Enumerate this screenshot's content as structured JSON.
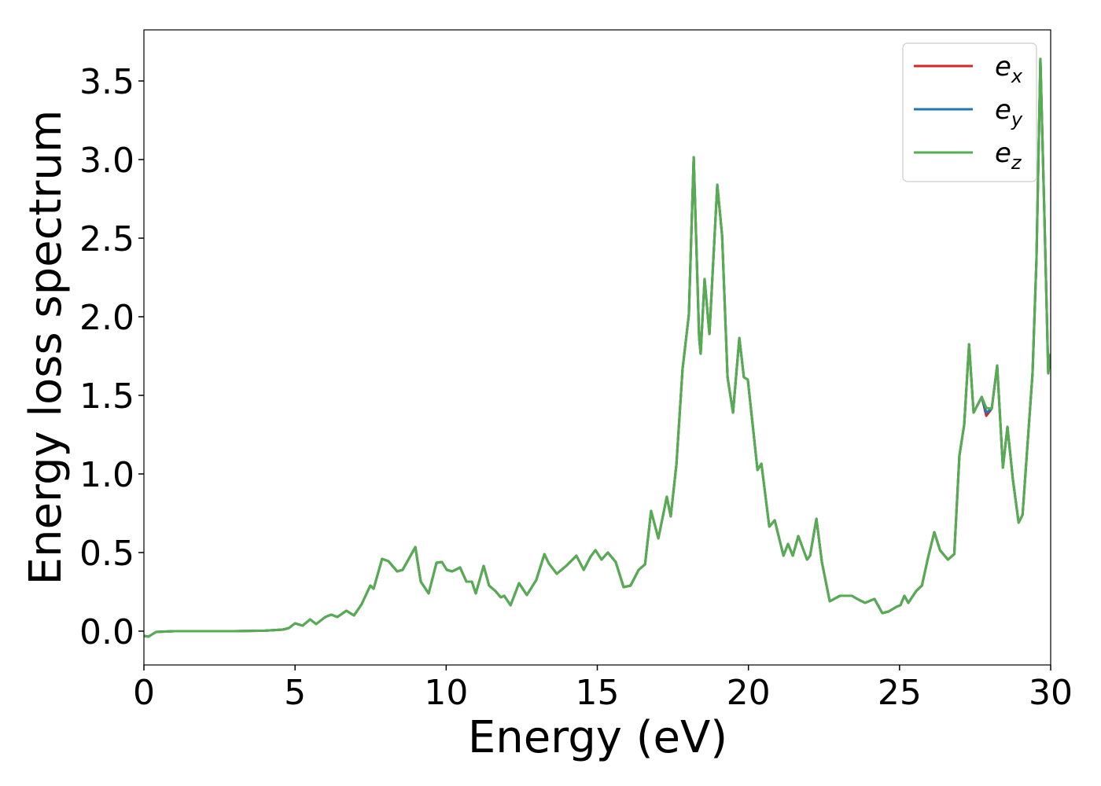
{
  "chart_data": {
    "type": "line",
    "xlabel": "Energy (eV)",
    "ylabel": "Energy loss spectrum",
    "xlim": [
      0,
      30
    ],
    "ylim": [
      -0.215,
      3.825
    ],
    "xticks": [
      0,
      5,
      10,
      15,
      20,
      25,
      30
    ],
    "yticks": [
      {
        "value": 0,
        "label": "0.0"
      },
      0.5,
      {
        "value": 1,
        "label": "1.0"
      },
      1.5,
      {
        "value": 2,
        "label": "2.0"
      },
      2.5,
      {
        "value": 3,
        "label": "3.0"
      },
      3.5
    ],
    "legend": "upper right",
    "x": [
      0,
      0.15,
      0.4,
      1,
      2,
      3,
      4,
      4.6,
      4.8,
      5.0,
      5.25,
      5.5,
      5.7,
      6.0,
      6.2,
      6.4,
      6.7,
      6.95,
      7.2,
      7.49,
      7.6,
      7.88,
      8.09,
      8.38,
      8.56,
      8.98,
      9.16,
      9.42,
      9.68,
      9.86,
      10.02,
      10.2,
      10.46,
      10.67,
      10.85,
      10.98,
      11.24,
      11.42,
      11.63,
      11.81,
      11.92,
      12.13,
      12.41,
      12.67,
      12.98,
      13.25,
      13.4,
      13.66,
      13.97,
      14.31,
      14.55,
      14.78,
      14.94,
      15.14,
      15.35,
      15.61,
      15.87,
      16.1,
      16.37,
      16.58,
      16.78,
      17.02,
      17.3,
      17.43,
      17.62,
      17.82,
      18.03,
      18.19,
      18.37,
      18.42,
      18.55,
      18.71,
      18.97,
      19.13,
      19.31,
      19.49,
      19.7,
      19.85,
      19.98,
      20.14,
      20.3,
      20.43,
      20.69,
      20.87,
      21.16,
      21.31,
      21.47,
      21.65,
      21.94,
      22.04,
      22.25,
      22.43,
      22.69,
      23.03,
      23.42,
      23.65,
      23.86,
      24.17,
      24.43,
      24.64,
      24.9,
      25.03,
      25.16,
      25.29,
      25.55,
      25.74,
      25.94,
      26.15,
      26.34,
      26.6,
      26.81,
      26.98,
      27.14,
      27.3,
      27.45,
      27.72,
      27.87,
      28.05,
      28.23,
      28.42,
      28.57,
      28.75,
      28.94,
      29.07,
      29.4,
      29.53,
      29.66,
      29.79,
      29.92,
      30.0
    ],
    "series": [
      {
        "name": "e",
        "subscript": "x",
        "color": "#d62728",
        "values": [
          -0.03,
          -0.035,
          -0.005,
          0,
          0,
          0,
          0.003,
          0.01,
          0.02,
          0.05,
          0.035,
          0.075,
          0.045,
          0.09,
          0.105,
          0.09,
          0.13,
          0.1,
          0.17,
          0.29,
          0.27,
          0.46,
          0.445,
          0.38,
          0.39,
          0.535,
          0.315,
          0.24,
          0.435,
          0.44,
          0.39,
          0.38,
          0.405,
          0.315,
          0.315,
          0.24,
          0.415,
          0.29,
          0.255,
          0.215,
          0.225,
          0.165,
          0.305,
          0.23,
          0.325,
          0.49,
          0.43,
          0.365,
          0.415,
          0.48,
          0.39,
          0.475,
          0.515,
          0.455,
          0.5,
          0.44,
          0.28,
          0.29,
          0.39,
          0.425,
          0.765,
          0.59,
          0.855,
          0.73,
          1.065,
          1.665,
          2.015,
          3.015,
          1.865,
          1.765,
          2.24,
          1.89,
          2.84,
          2.515,
          1.615,
          1.39,
          1.865,
          1.615,
          1.6,
          1.315,
          1.025,
          1.065,
          0.665,
          0.705,
          0.48,
          0.555,
          0.48,
          0.605,
          0.455,
          0.48,
          0.715,
          0.44,
          0.19,
          0.225,
          0.225,
          0.2,
          0.18,
          0.205,
          0.115,
          0.125,
          0.155,
          0.165,
          0.225,
          0.18,
          0.255,
          0.29,
          0.465,
          0.63,
          0.515,
          0.455,
          0.49,
          1.115,
          1.315,
          1.825,
          1.39,
          1.49,
          1.37,
          1.415,
          1.69,
          1.04,
          1.3,
          0.965,
          0.69,
          0.74,
          1.64,
          2.365,
          3.64,
          2.665,
          1.64,
          1.765
        ]
      },
      {
        "name": "e",
        "subscript": "y",
        "color": "#1f77b4",
        "values": [
          -0.03,
          -0.035,
          -0.005,
          0,
          0,
          0,
          0.003,
          0.01,
          0.02,
          0.05,
          0.035,
          0.075,
          0.045,
          0.09,
          0.105,
          0.09,
          0.13,
          0.1,
          0.17,
          0.29,
          0.27,
          0.46,
          0.445,
          0.38,
          0.39,
          0.535,
          0.315,
          0.24,
          0.435,
          0.44,
          0.39,
          0.38,
          0.405,
          0.315,
          0.315,
          0.24,
          0.415,
          0.29,
          0.255,
          0.215,
          0.225,
          0.165,
          0.305,
          0.23,
          0.325,
          0.49,
          0.43,
          0.365,
          0.415,
          0.48,
          0.39,
          0.475,
          0.515,
          0.455,
          0.5,
          0.44,
          0.28,
          0.29,
          0.39,
          0.425,
          0.765,
          0.59,
          0.855,
          0.73,
          1.065,
          1.665,
          2.015,
          3.015,
          1.865,
          1.765,
          2.24,
          1.89,
          2.84,
          2.515,
          1.615,
          1.39,
          1.865,
          1.615,
          1.6,
          1.315,
          1.025,
          1.065,
          0.665,
          0.705,
          0.48,
          0.555,
          0.48,
          0.605,
          0.455,
          0.48,
          0.715,
          0.44,
          0.19,
          0.225,
          0.225,
          0.2,
          0.18,
          0.205,
          0.115,
          0.125,
          0.155,
          0.165,
          0.225,
          0.18,
          0.255,
          0.29,
          0.465,
          0.63,
          0.515,
          0.455,
          0.49,
          1.115,
          1.315,
          1.825,
          1.39,
          1.49,
          1.39,
          1.415,
          1.69,
          1.04,
          1.3,
          0.965,
          0.69,
          0.74,
          1.64,
          2.365,
          3.64,
          2.665,
          1.64,
          1.765
        ]
      },
      {
        "name": "e",
        "subscript": "z",
        "color": "#55ad4f",
        "values": [
          -0.03,
          -0.035,
          -0.005,
          0,
          0,
          0,
          0.003,
          0.01,
          0.02,
          0.05,
          0.035,
          0.075,
          0.045,
          0.09,
          0.105,
          0.09,
          0.13,
          0.1,
          0.17,
          0.29,
          0.27,
          0.46,
          0.445,
          0.38,
          0.39,
          0.535,
          0.315,
          0.24,
          0.435,
          0.44,
          0.39,
          0.38,
          0.405,
          0.315,
          0.315,
          0.24,
          0.415,
          0.29,
          0.255,
          0.215,
          0.225,
          0.165,
          0.305,
          0.23,
          0.325,
          0.49,
          0.43,
          0.365,
          0.415,
          0.48,
          0.39,
          0.475,
          0.515,
          0.455,
          0.5,
          0.44,
          0.28,
          0.29,
          0.39,
          0.425,
          0.765,
          0.59,
          0.855,
          0.73,
          1.065,
          1.665,
          2.015,
          3.015,
          1.865,
          1.765,
          2.24,
          1.89,
          2.84,
          2.515,
          1.615,
          1.39,
          1.865,
          1.615,
          1.6,
          1.315,
          1.025,
          1.065,
          0.665,
          0.705,
          0.48,
          0.555,
          0.48,
          0.605,
          0.455,
          0.48,
          0.715,
          0.44,
          0.19,
          0.225,
          0.225,
          0.2,
          0.18,
          0.205,
          0.115,
          0.125,
          0.155,
          0.165,
          0.225,
          0.18,
          0.255,
          0.29,
          0.465,
          0.63,
          0.515,
          0.455,
          0.49,
          1.115,
          1.315,
          1.825,
          1.39,
          1.49,
          1.42,
          1.415,
          1.69,
          1.04,
          1.3,
          0.965,
          0.69,
          0.74,
          1.64,
          2.365,
          3.64,
          2.665,
          1.64,
          1.765
        ]
      }
    ]
  }
}
